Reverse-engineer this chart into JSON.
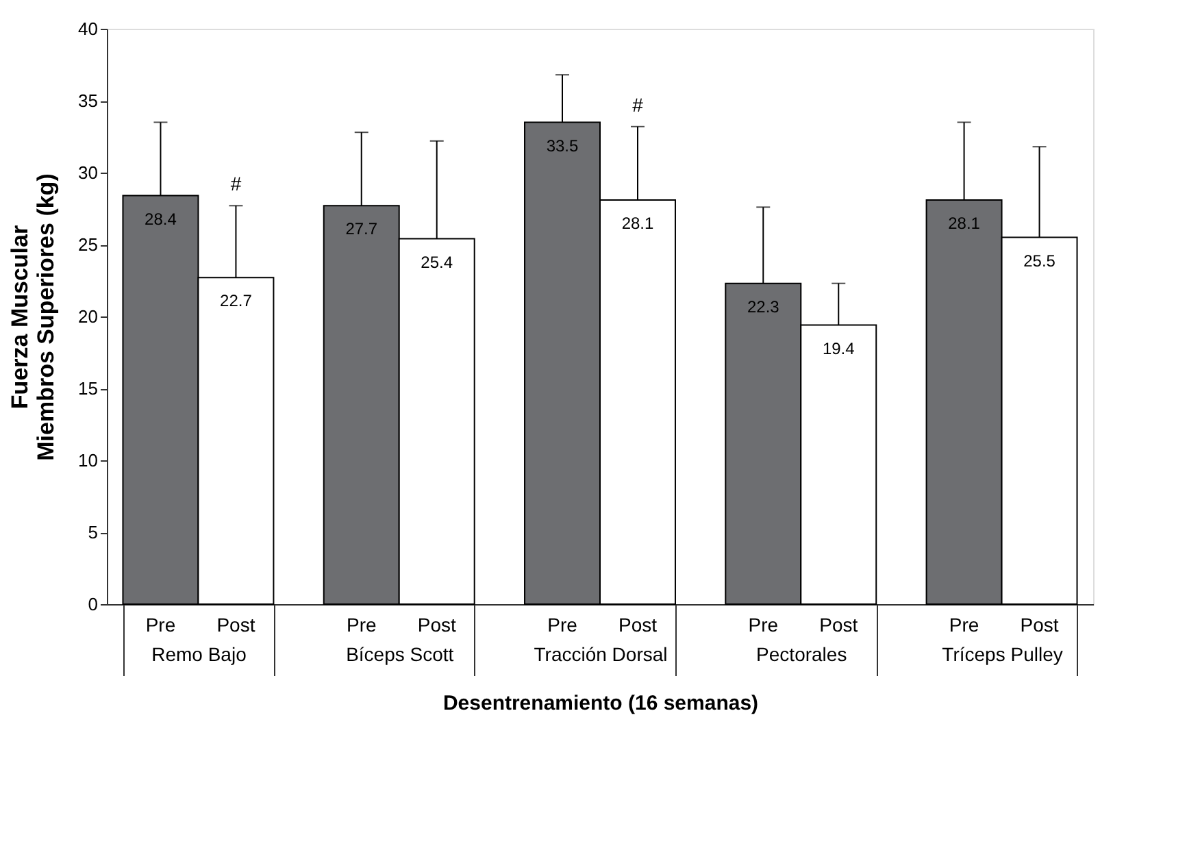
{
  "chart_data": {
    "type": "bar",
    "xlabel": "Desentrenamiento (16 semanas)",
    "ylabel": "Fuerza Muscular\nMiembros Superiores (kg)",
    "categories": [
      "Remo Bajo",
      "Bíceps Scott",
      "Tracción Dorsal",
      "Pectorales",
      "Tríceps Pulley"
    ],
    "series": [
      {
        "name": "Pre",
        "color": "#6d6e71",
        "values": [
          28.4,
          27.7,
          33.5,
          22.3,
          28.1
        ],
        "errors": [
          [
            28.4,
            33.5
          ],
          [
            27.7,
            32.8
          ],
          [
            33.5,
            36.8
          ],
          [
            22.3,
            27.6
          ],
          [
            28.1,
            33.5
          ]
        ]
      },
      {
        "name": "Post",
        "color": "#ffffff",
        "values": [
          22.7,
          25.4,
          28.1,
          19.4,
          25.5
        ],
        "errors": [
          [
            22.7,
            27.7
          ],
          [
            25.4,
            32.2
          ],
          [
            28.1,
            33.2
          ],
          [
            19.4,
            22.3
          ],
          [
            25.5,
            31.8
          ]
        ]
      }
    ],
    "annotations": [
      {
        "text": "#",
        "x": "Remo Bajo",
        "y": 27.7
      },
      {
        "text": "#",
        "x": "Tracción Dorsal",
        "y": 33.2
      }
    ],
    "ylim": [
      0,
      40
    ],
    "yticks": [
      0,
      5,
      10,
      15,
      20,
      25,
      30,
      35,
      40
    ],
    "data_labels": true,
    "grid": false,
    "legend": false
  }
}
